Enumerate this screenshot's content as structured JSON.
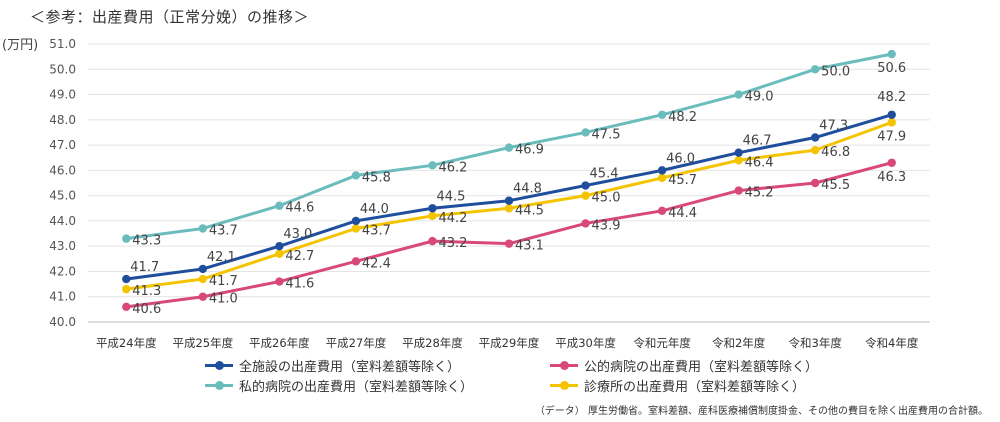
{
  "header": {
    "title": "＜参考：出産費用（正常分娩）の推移＞",
    "unit_label": "(万円)"
  },
  "footnote": "（データ） 厚生労働省。室料差額、産科医療補償制度掛金、その他の費目を除く出産費用の合計額。",
  "chart_data": {
    "type": "line",
    "title": "＜参考：出産費用（正常分娩）の推移＞",
    "ylabel": "(万円)",
    "ylim": [
      40.0,
      51.0
    ],
    "yticks": [
      "40.0",
      "41.0",
      "42.0",
      "43.0",
      "44.0",
      "45.0",
      "46.0",
      "47.0",
      "48.0",
      "49.0",
      "50.0",
      "51.0"
    ],
    "grid": true,
    "legend_position": "bottom",
    "categories": [
      "平成24年度",
      "平成25年度",
      "平成26年度",
      "平成27年度",
      "平成28年度",
      "平成29年度",
      "平成30年度",
      "令和元年度",
      "令和2年度",
      "令和3年度",
      "令和4年度"
    ],
    "series": [
      {
        "name": "全施設の出産費用（室料差額等除く）",
        "color": "#1f4e9c",
        "values": [
          41.7,
          42.1,
          43.0,
          44.0,
          44.5,
          44.8,
          45.4,
          46.0,
          46.7,
          47.3,
          48.2
        ],
        "labels": [
          "41.7",
          "42.1",
          "43.0",
          "44.0",
          "44.5",
          "44.8",
          "45.4",
          "46.0",
          "46.7",
          "47.3",
          "48.2"
        ]
      },
      {
        "name": "私的病院の出産費用（室料差額等除く）",
        "color": "#6bbcbd",
        "values": [
          43.3,
          43.7,
          44.6,
          45.8,
          46.2,
          46.9,
          47.5,
          48.2,
          49.0,
          50.0,
          50.6
        ],
        "labels": [
          "43.3",
          "43.7",
          "44.6",
          "45.8",
          "46.2",
          "46.9",
          "47.5",
          "48.2",
          "49.0",
          "50.0",
          "50.6"
        ]
      },
      {
        "name": "公的病院の出産費用（室料差額等除く）",
        "color": "#d9487a",
        "values": [
          40.6,
          41.0,
          41.6,
          42.4,
          43.2,
          43.1,
          43.9,
          44.4,
          45.2,
          45.5,
          46.3
        ],
        "labels": [
          "40.6",
          "41.0",
          "41.6",
          "42.4",
          "43.2",
          "43.1",
          "43.9",
          "44.4",
          "45.2",
          "45.5",
          "46.3"
        ]
      },
      {
        "name": "診療所の出産費用（室料差額等除く）",
        "color": "#f5c400",
        "values": [
          41.3,
          41.7,
          42.7,
          43.7,
          44.2,
          44.5,
          45.0,
          45.7,
          46.4,
          46.8,
          47.9
        ],
        "labels": [
          "41.3",
          "41.7",
          "42.7",
          "43.7",
          "44.2",
          "44.5",
          "45.0",
          "45.7",
          "46.4",
          "46.8",
          "47.9"
        ]
      }
    ]
  }
}
